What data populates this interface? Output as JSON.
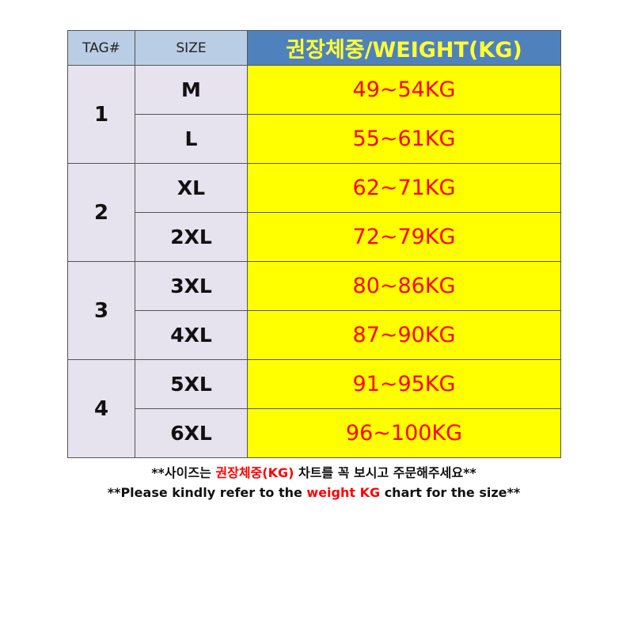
{
  "header": {
    "tag": "TAG#",
    "size": "SIZE",
    "weight": "권장체중/WEIGHT(KG)"
  },
  "groups": [
    {
      "tag": "1",
      "rows": [
        {
          "size": "M",
          "weight": "49~54KG"
        },
        {
          "size": "L",
          "weight": "55~61KG"
        }
      ]
    },
    {
      "tag": "2",
      "rows": [
        {
          "size": "XL",
          "weight": "62~71KG"
        },
        {
          "size": "2XL",
          "weight": "72~79KG"
        }
      ]
    },
    {
      "tag": "3",
      "rows": [
        {
          "size": "3XL",
          "weight": "80~86KG"
        },
        {
          "size": "4XL",
          "weight": "87~90KG"
        }
      ]
    },
    {
      "tag": "4",
      "rows": [
        {
          "size": "5XL",
          "weight": "91~95KG"
        },
        {
          "size": "6XL",
          "weight": "96~100KG"
        }
      ]
    }
  ],
  "notes": {
    "korean_prefix": "**사이즈는 ",
    "korean_highlight": "권장체중(KG)",
    "korean_suffix": " 차트를 꼭 보시고 주문해주세요**",
    "english_prefix": "**Please kindly refer to the ",
    "english_highlight": "weight KG",
    "english_suffix": " chart for the size**"
  },
  "colors": {
    "header_light": "#b9cde5",
    "header_dark": "#4f81bd",
    "header_text": "#ffff33",
    "weight_bg": "#ffff00",
    "weight_text": "#ff0000",
    "tag_bg": "#e6e2ee"
  }
}
